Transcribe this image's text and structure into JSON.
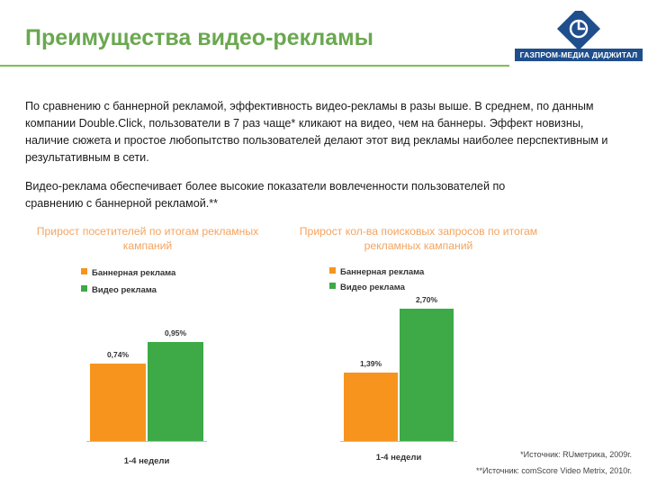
{
  "header": {
    "title": "Преимущества видео-рекламы",
    "logo_text": "ГАЗПРОМ-МЕДИА ДИДЖИТАЛ",
    "brand_color": "#6aa84f",
    "logo_color": "#1f4e8c"
  },
  "body": {
    "paragraph1": "По сравнению с баннерной рекламой, эффективность видео-рекламы в разы выше. В среднем, по данным компании Double.Click, пользователи в 7 раз чаще* кликают на видео, чем на баннеры. Эффект новизны, наличие сюжета и простое любопытство пользователей делают этот вид рекламы наиболее перспективным и результативным в сети.",
    "paragraph2": "Видео-реклама обеспечивает более высокие показатели вовлеченности пользователей по сравнению с баннерной рекламой.**"
  },
  "chart_data": [
    {
      "type": "bar",
      "title": "Прирост посетителей по итогам рекламных кампаний",
      "categories": [
        "1-4 недели"
      ],
      "series": [
        {
          "name": "Баннерная реклама",
          "values": [
            0.74
          ],
          "label": "0,74%",
          "color": "#f7941d"
        },
        {
          "name": "Видео реклама",
          "values": [
            0.95
          ],
          "label": "0,95%",
          "color": "#3daa47"
        }
      ],
      "ylim": [
        0,
        1.25
      ],
      "legend": "top-left",
      "grid": false
    },
    {
      "type": "bar",
      "title": "Прирост кол-ва поисковых запросов по итогам рекламных кампаний",
      "categories": [
        "1-4 недели"
      ],
      "series": [
        {
          "name": "Баннерная реклама",
          "values": [
            1.39
          ],
          "label": "1,39%",
          "color": "#f7941d"
        },
        {
          "name": "Видео реклама",
          "values": [
            2.7
          ],
          "label": "2,70%",
          "color": "#3daa47"
        }
      ],
      "ylim": [
        0,
        3.0
      ],
      "legend": "top-left",
      "grid": false
    }
  ],
  "footnotes": {
    "note1": "*Источник: RUметрика, 2009г.",
    "note2": "**Источник: comScore Video Metrix, 2010г."
  }
}
